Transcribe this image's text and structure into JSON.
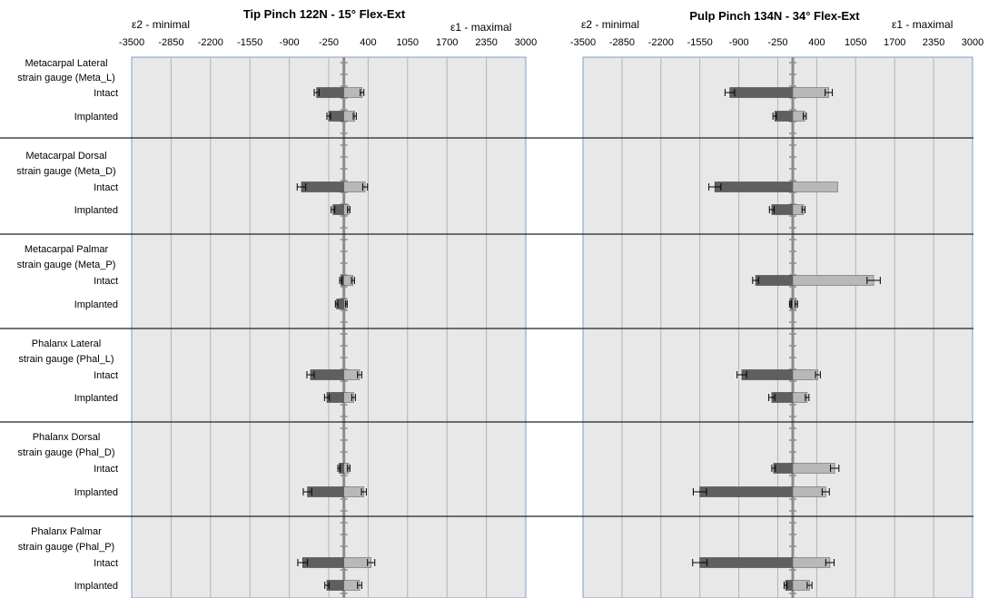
{
  "chart_data": {
    "type": "bar",
    "orientation": "horizontal",
    "x_ticks": [
      -3500,
      -2850,
      -2200,
      -1550,
      -900,
      -250,
      400,
      1050,
      1700,
      2350,
      3000
    ],
    "xlim": [
      -3500,
      3000
    ],
    "grid": true,
    "axis_headers": {
      "left": "ε2  - minimal",
      "right": "ε1  - maximal"
    },
    "groups": [
      {
        "label_line1": "Metacarpal  Lateral",
        "label_line2": "strain gauge (Meta_L)"
      },
      {
        "label_line1": "Metacarpal  Dorsal",
        "label_line2": "strain gauge (Meta_D)"
      },
      {
        "label_line1": "Metacarpal  Palmar",
        "label_line2": "strain gauge (Meta_P)"
      },
      {
        "label_line1": "Phalanx Lateral",
        "label_line2": "strain gauge (Phal_L)"
      },
      {
        "label_line1": "Phalanx Dorsal",
        "label_line2": "strain gauge (Phal_D)"
      },
      {
        "label_line1": "Phalanx Palmar",
        "label_line2": "strain gauge (Phal_P)"
      }
    ],
    "conditions": [
      "Intact",
      "Implanted"
    ],
    "series": [
      {
        "name": "ε2 - minimal",
        "color": "#5f5f5f"
      },
      {
        "name": "ε1 - maximal",
        "color": "#b8b8b8"
      }
    ],
    "charts": [
      {
        "title": "Tip Pinch 122N - 15° Flex-Ext",
        "data": [
          [
            {
              "min": -450,
              "min_err": 40,
              "max": 300,
              "max_err": 30
            },
            {
              "min": -250,
              "min_err": 30,
              "max": 180,
              "max_err": 25
            }
          ],
          [
            {
              "min": -700,
              "min_err": 70,
              "max": 350,
              "max_err": 40
            },
            {
              "min": -180,
              "min_err": 30,
              "max": 80,
              "max_err": 20
            }
          ],
          [
            {
              "min": -50,
              "min_err": 20,
              "max": 150,
              "max_err": 25
            },
            {
              "min": -120,
              "min_err": 20,
              "max": 40,
              "max_err": 15
            }
          ],
          [
            {
              "min": -550,
              "min_err": 60,
              "max": 260,
              "max_err": 35
            },
            {
              "min": -280,
              "min_err": 40,
              "max": 160,
              "max_err": 30
            }
          ],
          [
            {
              "min": -80,
              "min_err": 20,
              "max": 80,
              "max_err": 20
            },
            {
              "min": -600,
              "min_err": 70,
              "max": 330,
              "max_err": 40
            }
          ],
          [
            {
              "min": -680,
              "min_err": 80,
              "max": 450,
              "max_err": 60
            },
            {
              "min": -280,
              "min_err": 35,
              "max": 260,
              "max_err": 35
            }
          ]
        ]
      },
      {
        "title": "Pulp Pinch 134N - 34° Flex-Ext",
        "data": [
          [
            {
              "min": -1050,
              "min_err": 80,
              "max": 600,
              "max_err": 60
            },
            {
              "min": -300,
              "min_err": 30,
              "max": 200,
              "max_err": 25
            }
          ],
          [
            {
              "min": -1300,
              "min_err": 100,
              "max": 750,
              "max_err": 0
            },
            {
              "min": -350,
              "min_err": 40,
              "max": 180,
              "max_err": 25
            }
          ],
          [
            {
              "min": -620,
              "min_err": 50,
              "max": 1350,
              "max_err": 110
            },
            {
              "min": -40,
              "min_err": 15,
              "max": 60,
              "max_err": 20
            }
          ],
          [
            {
              "min": -850,
              "min_err": 80,
              "max": 420,
              "max_err": 40
            },
            {
              "min": -350,
              "min_err": 50,
              "max": 240,
              "max_err": 30
            }
          ],
          [
            {
              "min": -320,
              "min_err": 30,
              "max": 700,
              "max_err": 70
            },
            {
              "min": -1550,
              "min_err": 110,
              "max": 550,
              "max_err": 60
            }
          ],
          [
            {
              "min": -1550,
              "min_err": 120,
              "max": 620,
              "max_err": 70
            },
            {
              "min": -120,
              "min_err": 25,
              "max": 280,
              "max_err": 40
            }
          ]
        ]
      }
    ]
  }
}
